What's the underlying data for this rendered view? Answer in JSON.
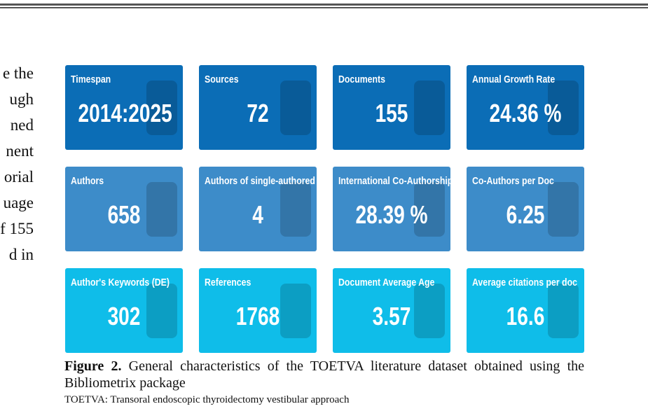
{
  "body_text": {
    "lines": [
      "e the",
      "ugh",
      "ned",
      "nent",
      "orial",
      "uage",
      "f 155",
      "d in"
    ]
  },
  "figure": {
    "cards": [
      {
        "title": "Timespan",
        "value": "2014:2025"
      },
      {
        "title": "Sources",
        "value": "72"
      },
      {
        "title": "Documents",
        "value": "155"
      },
      {
        "title": "Annual Growth Rate",
        "value": "24.36 %"
      },
      {
        "title": "Authors",
        "value": "658"
      },
      {
        "title": "Authors of single-authored d",
        "value": "4"
      },
      {
        "title": "International Co-Authorship",
        "value": "28.39 %"
      },
      {
        "title": "Co-Authors per Doc",
        "value": "6.25"
      },
      {
        "title": "Author's Keywords (DE)",
        "value": "302"
      },
      {
        "title": "References",
        "value": "1768"
      },
      {
        "title": "Document Average Age",
        "value": "3.57"
      },
      {
        "title": "Average citations per doc",
        "value": "16.6"
      }
    ],
    "caption_label": "Figure 2.",
    "caption": "General characteristics of the TOETVA literature dataset obtained using the Bibliometrix package",
    "footnote": "TOETVA: Transoral endoscopic thyroidectomy vestibular approach"
  }
}
